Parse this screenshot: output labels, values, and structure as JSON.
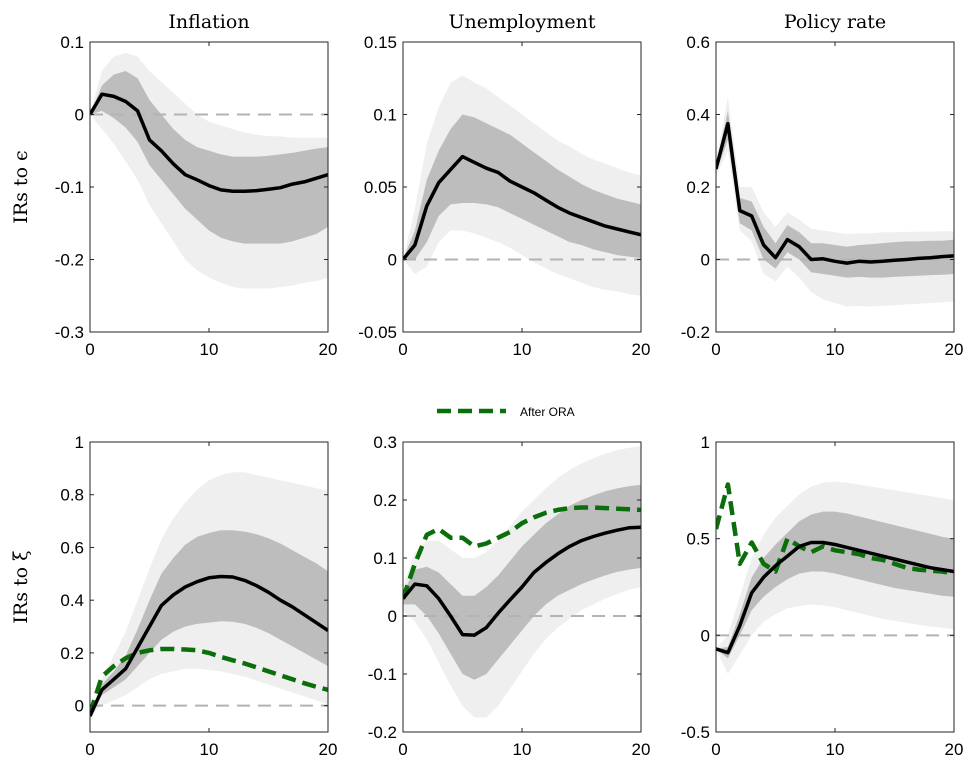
{
  "colors": {
    "outer_band": "#efefef",
    "inner_band": "#bdbdbd",
    "median": "#000000",
    "after_ora": "#0a6e0a",
    "zero_line": "#b3b3b3"
  },
  "legend": {
    "label": "After ORA"
  },
  "chart_data": [
    {
      "type": "line",
      "title": "Inflation",
      "ylabel": "IRs to ϵ",
      "xlim": [
        0,
        20
      ],
      "ylim": [
        -0.3,
        0.1
      ],
      "xticks": [
        0,
        10,
        20
      ],
      "xtick_labels": [
        "0",
        "10",
        "20"
      ],
      "yticks": [
        -0.3,
        -0.2,
        -0.1,
        0,
        0.1
      ],
      "ytick_labels": [
        "-0.3",
        "-0.2",
        "-0.1",
        "0",
        "0.1"
      ],
      "x": [
        0,
        1,
        2,
        3,
        4,
        5,
        6,
        7,
        8,
        9,
        10,
        11,
        12,
        13,
        14,
        15,
        16,
        17,
        18,
        19,
        20
      ],
      "median": [
        0,
        0.028,
        0.025,
        0.018,
        0.005,
        -0.035,
        -0.05,
        -0.068,
        -0.083,
        -0.09,
        -0.098,
        -0.104,
        -0.106,
        -0.106,
        -0.105,
        -0.103,
        -0.101,
        -0.096,
        -0.093,
        -0.088,
        -0.083
      ],
      "inner_lo": [
        0,
        0.005,
        -0.005,
        -0.018,
        -0.038,
        -0.07,
        -0.09,
        -0.11,
        -0.13,
        -0.145,
        -0.16,
        -0.17,
        -0.175,
        -0.178,
        -0.178,
        -0.178,
        -0.178,
        -0.175,
        -0.17,
        -0.165,
        -0.155
      ],
      "inner_hi": [
        0,
        0.04,
        0.055,
        0.06,
        0.05,
        0.02,
        0.0,
        -0.02,
        -0.035,
        -0.045,
        -0.05,
        -0.055,
        -0.058,
        -0.058,
        -0.058,
        -0.057,
        -0.055,
        -0.053,
        -0.05,
        -0.047,
        -0.045
      ],
      "outer_lo": [
        0,
        -0.02,
        -0.04,
        -0.065,
        -0.09,
        -0.125,
        -0.15,
        -0.175,
        -0.2,
        -0.215,
        -0.225,
        -0.232,
        -0.238,
        -0.24,
        -0.24,
        -0.24,
        -0.238,
        -0.236,
        -0.232,
        -0.23,
        -0.225
      ],
      "outer_hi": [
        0,
        0.06,
        0.08,
        0.085,
        0.08,
        0.06,
        0.045,
        0.03,
        0.015,
        0.0,
        -0.01,
        -0.015,
        -0.02,
        -0.025,
        -0.028,
        -0.03,
        -0.03,
        -0.032,
        -0.032,
        -0.032,
        -0.032
      ]
    },
    {
      "type": "line",
      "title": "Unemployment",
      "ylabel": "",
      "xlim": [
        0,
        20
      ],
      "ylim": [
        -0.05,
        0.15
      ],
      "xticks": [
        0,
        10,
        20
      ],
      "xtick_labels": [
        "0",
        "10",
        "20"
      ],
      "yticks": [
        -0.05,
        0,
        0.05,
        0.1,
        0.15
      ],
      "ytick_labels": [
        "-0.05",
        "0",
        "0.05",
        "0.1",
        "0.15"
      ],
      "x": [
        0,
        1,
        2,
        3,
        4,
        5,
        6,
        7,
        8,
        9,
        10,
        11,
        12,
        13,
        14,
        15,
        16,
        17,
        18,
        19,
        20
      ],
      "median": [
        0,
        0.01,
        0.037,
        0.053,
        0.062,
        0.071,
        0.067,
        0.063,
        0.06,
        0.054,
        0.05,
        0.046,
        0.041,
        0.036,
        0.032,
        0.029,
        0.026,
        0.023,
        0.021,
        0.019,
        0.017
      ],
      "inner_lo": [
        0,
        0.0,
        0.012,
        0.03,
        0.038,
        0.039,
        0.039,
        0.038,
        0.036,
        0.032,
        0.028,
        0.024,
        0.02,
        0.016,
        0.012,
        0.01,
        0.007,
        0.005,
        0.003,
        0.002,
        0.001
      ],
      "inner_hi": [
        0,
        0.02,
        0.055,
        0.075,
        0.09,
        0.1,
        0.098,
        0.094,
        0.09,
        0.086,
        0.08,
        0.074,
        0.068,
        0.062,
        0.057,
        0.052,
        0.048,
        0.045,
        0.042,
        0.04,
        0.038
      ],
      "outer_lo": [
        0,
        -0.01,
        -0.005,
        0.012,
        0.02,
        0.02,
        0.018,
        0.015,
        0.012,
        0.008,
        0.003,
        -0.002,
        -0.006,
        -0.01,
        -0.013,
        -0.016,
        -0.019,
        -0.021,
        -0.022,
        -0.024,
        -0.025
      ],
      "outer_hi": [
        0,
        0.035,
        0.08,
        0.105,
        0.122,
        0.127,
        0.122,
        0.118,
        0.112,
        0.106,
        0.1,
        0.094,
        0.088,
        0.082,
        0.078,
        0.073,
        0.069,
        0.066,
        0.063,
        0.06,
        0.058
      ]
    },
    {
      "type": "line",
      "title": "Policy rate",
      "ylabel": "",
      "xlim": [
        0,
        20
      ],
      "ylim": [
        -0.2,
        0.6
      ],
      "xticks": [
        0,
        10,
        20
      ],
      "xtick_labels": [
        "0",
        "10",
        "20"
      ],
      "yticks": [
        -0.2,
        0,
        0.2,
        0.4,
        0.6
      ],
      "ytick_labels": [
        "-0.2",
        "0",
        "0.2",
        "0.4",
        "0.6"
      ],
      "x": [
        0,
        1,
        2,
        3,
        4,
        5,
        6,
        7,
        8,
        9,
        10,
        11,
        12,
        13,
        14,
        15,
        16,
        17,
        18,
        19,
        20
      ],
      "median": [
        0.25,
        0.375,
        0.135,
        0.12,
        0.04,
        0.005,
        0.055,
        0.035,
        0.0,
        0.002,
        -0.005,
        -0.01,
        -0.005,
        -0.007,
        -0.005,
        -0.002,
        0.0,
        0.003,
        0.005,
        0.008,
        0.01
      ],
      "inner_lo": [
        0.24,
        0.33,
        0.1,
        0.08,
        0.0,
        -0.025,
        0.02,
        0.0,
        -0.035,
        -0.04,
        -0.045,
        -0.05,
        -0.048,
        -0.05,
        -0.05,
        -0.048,
        -0.046,
        -0.045,
        -0.043,
        -0.042,
        -0.04
      ],
      "inner_hi": [
        0.26,
        0.41,
        0.17,
        0.16,
        0.09,
        0.045,
        0.095,
        0.075,
        0.045,
        0.045,
        0.04,
        0.035,
        0.04,
        0.042,
        0.045,
        0.048,
        0.05,
        0.05,
        0.052,
        0.052,
        0.055
      ],
      "outer_lo": [
        0.23,
        0.3,
        0.08,
        0.05,
        -0.04,
        -0.06,
        -0.02,
        -0.05,
        -0.09,
        -0.11,
        -0.12,
        -0.13,
        -0.128,
        -0.13,
        -0.128,
        -0.126,
        -0.124,
        -0.122,
        -0.12,
        -0.118,
        -0.115
      ],
      "outer_hi": [
        0.27,
        0.45,
        0.2,
        0.2,
        0.13,
        0.09,
        0.13,
        0.11,
        0.085,
        0.08,
        0.075,
        0.07,
        0.072,
        0.072,
        0.075,
        0.075,
        0.076,
        0.077,
        0.077,
        0.078,
        0.078
      ]
    },
    {
      "type": "line",
      "title": "",
      "ylabel": "IRs to ξ",
      "xlim": [
        0,
        20
      ],
      "ylim": [
        -0.1,
        1
      ],
      "xticks": [
        0,
        10,
        20
      ],
      "xtick_labels": [
        "0",
        "10",
        "20"
      ],
      "yticks": [
        0,
        0.2,
        0.4,
        0.6,
        0.8,
        1
      ],
      "ytick_labels": [
        "0",
        "0.2",
        "0.4",
        "0.6",
        "0.8",
        "1"
      ],
      "x": [
        0,
        1,
        2,
        3,
        4,
        5,
        6,
        7,
        8,
        9,
        10,
        11,
        12,
        13,
        14,
        15,
        16,
        17,
        18,
        19,
        20
      ],
      "median": [
        -0.04,
        0.06,
        0.1,
        0.14,
        0.22,
        0.3,
        0.38,
        0.42,
        0.45,
        0.47,
        0.485,
        0.49,
        0.488,
        0.475,
        0.455,
        0.43,
        0.4,
        0.375,
        0.345,
        0.315,
        0.285
      ],
      "inner_lo": [
        -0.04,
        0.04,
        0.07,
        0.1,
        0.15,
        0.2,
        0.25,
        0.28,
        0.3,
        0.31,
        0.315,
        0.32,
        0.318,
        0.31,
        0.295,
        0.275,
        0.25,
        0.225,
        0.2,
        0.175,
        0.15
      ],
      "inner_hi": [
        -0.04,
        0.08,
        0.13,
        0.19,
        0.29,
        0.4,
        0.5,
        0.56,
        0.61,
        0.64,
        0.655,
        0.665,
        0.665,
        0.66,
        0.65,
        0.635,
        0.615,
        0.59,
        0.565,
        0.54,
        0.51
      ],
      "outer_lo": [
        -0.04,
        0.0,
        0.02,
        0.04,
        0.07,
        0.1,
        0.12,
        0.13,
        0.14,
        0.14,
        0.135,
        0.13,
        0.12,
        0.11,
        0.095,
        0.08,
        0.065,
        0.05,
        0.035,
        0.02,
        0.005
      ],
      "outer_hi": [
        -0.04,
        0.1,
        0.19,
        0.28,
        0.4,
        0.52,
        0.63,
        0.71,
        0.77,
        0.82,
        0.855,
        0.875,
        0.885,
        0.885,
        0.875,
        0.865,
        0.855,
        0.845,
        0.835,
        0.825,
        0.815
      ],
      "after_ora": [
        -0.03,
        0.11,
        0.15,
        0.18,
        0.2,
        0.21,
        0.215,
        0.215,
        0.213,
        0.21,
        0.2,
        0.185,
        0.172,
        0.16,
        0.145,
        0.13,
        0.115,
        0.1,
        0.085,
        0.072,
        0.06
      ]
    },
    {
      "type": "line",
      "title": "",
      "ylabel": "",
      "xlim": [
        0,
        20
      ],
      "ylim": [
        -0.2,
        0.3
      ],
      "xticks": [
        0,
        10,
        20
      ],
      "xtick_labels": [
        "0",
        "10",
        "20"
      ],
      "yticks": [
        -0.2,
        -0.1,
        0,
        0.1,
        0.2,
        0.3
      ],
      "ytick_labels": [
        "-0.2",
        "-0.1",
        "0",
        "0.1",
        "0.2",
        "0.3"
      ],
      "x": [
        0,
        1,
        2,
        3,
        4,
        5,
        6,
        7,
        8,
        9,
        10,
        11,
        12,
        13,
        14,
        15,
        16,
        17,
        18,
        19,
        20
      ],
      "median": [
        0.03,
        0.055,
        0.052,
        0.03,
        0.0,
        -0.032,
        -0.033,
        -0.02,
        0.005,
        0.028,
        0.05,
        0.075,
        0.092,
        0.107,
        0.12,
        0.13,
        0.137,
        0.143,
        0.148,
        0.152,
        0.153
      ],
      "inner_lo": [
        0.02,
        0.02,
        0.0,
        -0.03,
        -0.065,
        -0.1,
        -0.11,
        -0.1,
        -0.075,
        -0.05,
        -0.025,
        0.0,
        0.02,
        0.035,
        0.045,
        0.055,
        0.063,
        0.07,
        0.076,
        0.08,
        0.083
      ],
      "inner_hi": [
        0.04,
        0.08,
        0.085,
        0.075,
        0.055,
        0.035,
        0.035,
        0.05,
        0.07,
        0.095,
        0.12,
        0.14,
        0.16,
        0.175,
        0.19,
        0.2,
        0.208,
        0.215,
        0.22,
        0.224,
        0.226
      ],
      "outer_lo": [
        0.01,
        -0.01,
        -0.04,
        -0.08,
        -0.12,
        -0.155,
        -0.175,
        -0.175,
        -0.155,
        -0.125,
        -0.095,
        -0.065,
        -0.04,
        -0.02,
        -0.005,
        0.01,
        0.02,
        0.03,
        0.038,
        0.045,
        0.05
      ],
      "outer_hi": [
        0.05,
        0.11,
        0.13,
        0.13,
        0.115,
        0.1,
        0.1,
        0.11,
        0.13,
        0.155,
        0.18,
        0.2,
        0.22,
        0.238,
        0.252,
        0.263,
        0.272,
        0.28,
        0.286,
        0.29,
        0.293
      ],
      "after_ora": [
        0.03,
        0.09,
        0.14,
        0.15,
        0.135,
        0.135,
        0.12,
        0.125,
        0.135,
        0.145,
        0.16,
        0.17,
        0.178,
        0.183,
        0.186,
        0.187,
        0.187,
        0.186,
        0.185,
        0.184,
        0.183
      ]
    },
    {
      "type": "line",
      "title": "",
      "ylabel": "",
      "xlim": [
        0,
        20
      ],
      "ylim": [
        -0.5,
        1
      ],
      "xticks": [
        0,
        10,
        20
      ],
      "xtick_labels": [
        "0",
        "10",
        "20"
      ],
      "yticks": [
        -0.5,
        0,
        0.5,
        1
      ],
      "ytick_labels": [
        "-0.5",
        "0",
        "0.5",
        "1"
      ],
      "x": [
        0,
        1,
        2,
        3,
        4,
        5,
        6,
        7,
        8,
        9,
        10,
        11,
        12,
        13,
        14,
        15,
        16,
        17,
        18,
        19,
        20
      ],
      "median": [
        -0.07,
        -0.09,
        0.05,
        0.22,
        0.3,
        0.36,
        0.41,
        0.46,
        0.48,
        0.48,
        0.47,
        0.455,
        0.44,
        0.425,
        0.41,
        0.395,
        0.38,
        0.365,
        0.35,
        0.34,
        0.33
      ],
      "inner_lo": [
        -0.07,
        -0.12,
        0.0,
        0.13,
        0.2,
        0.25,
        0.29,
        0.32,
        0.33,
        0.33,
        0.32,
        0.305,
        0.29,
        0.275,
        0.26,
        0.245,
        0.235,
        0.225,
        0.215,
        0.205,
        0.2
      ],
      "inner_hi": [
        -0.07,
        -0.06,
        0.11,
        0.3,
        0.4,
        0.47,
        0.53,
        0.59,
        0.625,
        0.64,
        0.64,
        0.63,
        0.615,
        0.6,
        0.585,
        0.57,
        0.555,
        0.54,
        0.525,
        0.51,
        0.5
      ],
      "outer_lo": [
        -0.07,
        -0.2,
        -0.1,
        0.0,
        0.07,
        0.11,
        0.14,
        0.15,
        0.16,
        0.155,
        0.145,
        0.13,
        0.115,
        0.1,
        0.085,
        0.075,
        0.065,
        0.055,
        0.045,
        0.04,
        0.03
      ],
      "outer_hi": [
        -0.07,
        0.0,
        0.2,
        0.4,
        0.52,
        0.61,
        0.67,
        0.73,
        0.77,
        0.79,
        0.795,
        0.79,
        0.78,
        0.77,
        0.76,
        0.75,
        0.74,
        0.73,
        0.72,
        0.71,
        0.7
      ],
      "after_ora": [
        0.55,
        0.78,
        0.37,
        0.48,
        0.37,
        0.33,
        0.5,
        0.46,
        0.43,
        0.46,
        0.44,
        0.43,
        0.42,
        0.4,
        0.39,
        0.37,
        0.35,
        0.34,
        0.335,
        0.33,
        0.32
      ]
    }
  ]
}
